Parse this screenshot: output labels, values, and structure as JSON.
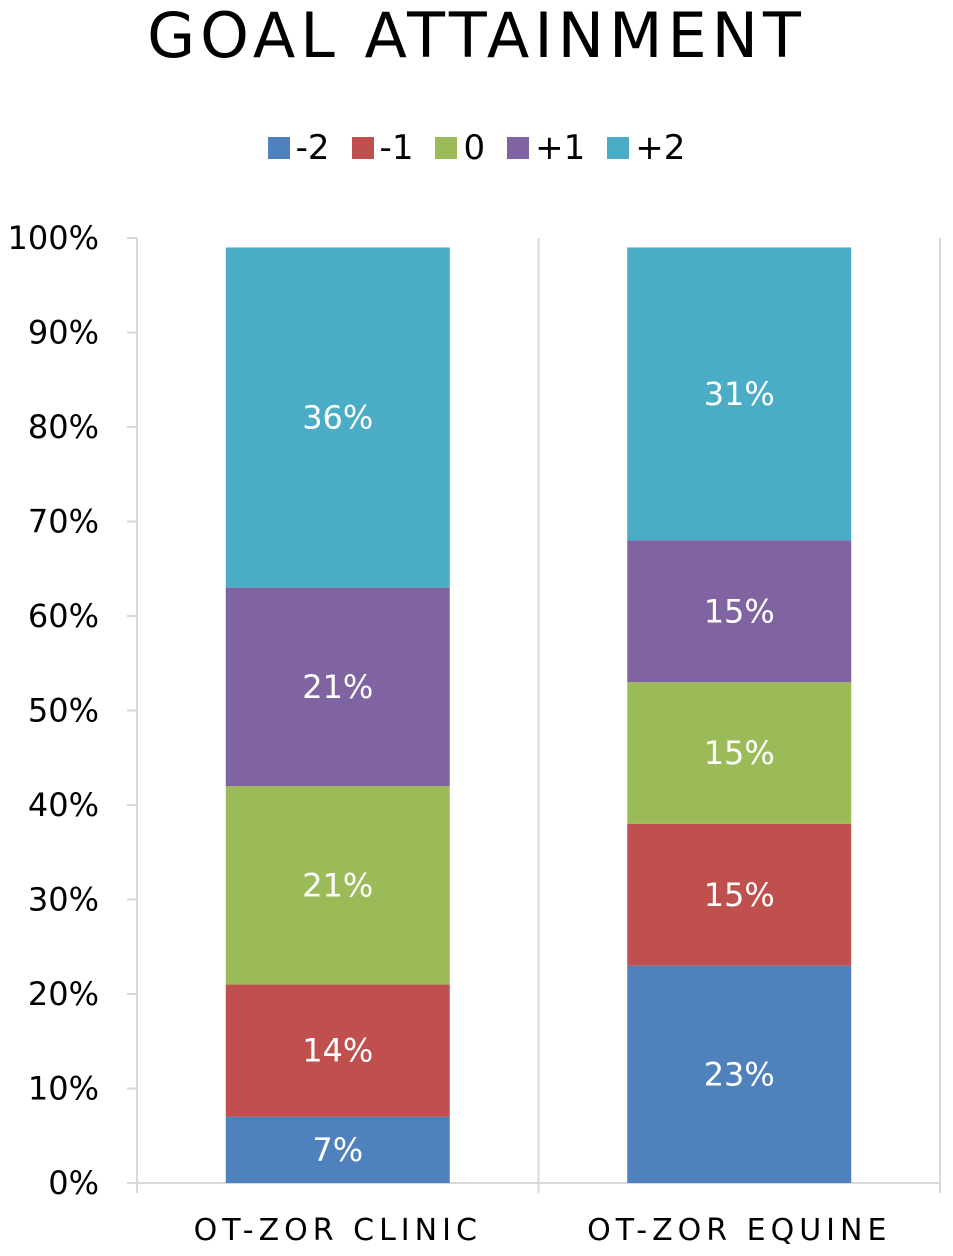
{
  "chart_data": {
    "type": "bar",
    "stacked": true,
    "title": "GOAL ATTAINMENT",
    "xlabel": "",
    "ylabel": "",
    "ylim": [
      0,
      100
    ],
    "yticks": [
      "0%",
      "10%",
      "20%",
      "30%",
      "40%",
      "50%",
      "60%",
      "70%",
      "80%",
      "90%",
      "100%"
    ],
    "categories": [
      "OT-ZOR CLINIC",
      "OT-ZOR EQUINE"
    ],
    "legend_position": "top",
    "grid": false,
    "series": [
      {
        "name": "-2",
        "color": "#4F81BD",
        "values": [
          7,
          23
        ],
        "labels": [
          "7%",
          "23%"
        ]
      },
      {
        "name": "-1",
        "color": "#C0504D",
        "values": [
          14,
          15
        ],
        "labels": [
          "14%",
          "15%"
        ]
      },
      {
        "name": "0",
        "color": "#9BBB59",
        "values": [
          21,
          15
        ],
        "labels": [
          "21%",
          "15%"
        ]
      },
      {
        "name": "+1",
        "color": "#8064A2",
        "values": [
          21,
          15
        ],
        "labels": [
          "21%",
          "15%"
        ]
      },
      {
        "name": "+2",
        "color": "#4BACC6",
        "values": [
          36,
          31
        ],
        "labels": [
          "36%",
          "31%"
        ]
      }
    ]
  }
}
